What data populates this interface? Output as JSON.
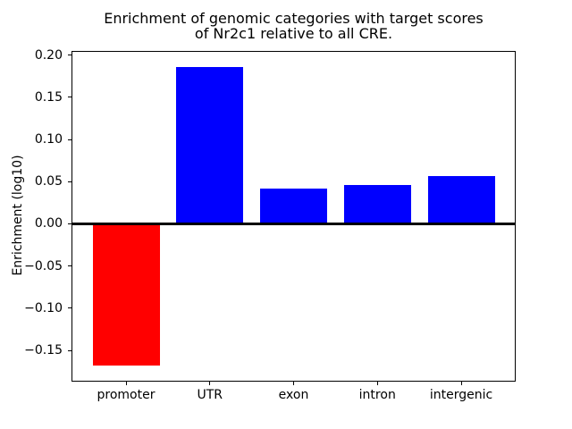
{
  "figure": {
    "title_lines": [
      "Enrichment of genomic categories with target scores",
      "of Nr2c1 relative to all CRE."
    ],
    "background_color": "#ffffff",
    "text_color": "#000000"
  },
  "chart_data": {
    "type": "bar",
    "title": "Enrichment of genomic categories with target scores of Nr2c1 relative to all CRE.",
    "xlabel": "",
    "ylabel": "Enrichment (log10)",
    "categories": [
      "promoter",
      "UTR",
      "exon",
      "intron",
      "intergenic"
    ],
    "values": [
      -0.168,
      0.186,
      0.042,
      0.046,
      0.057
    ],
    "bar_colors": [
      "#ff0000",
      "#0000ff",
      "#0000ff",
      "#0000ff",
      "#0000ff"
    ],
    "ylim": [
      -0.186,
      0.204
    ],
    "yticks": [
      {
        "value": -0.15,
        "label": "−0.15"
      },
      {
        "value": -0.1,
        "label": "−0.10"
      },
      {
        "value": -0.05,
        "label": "−0.05"
      },
      {
        "value": 0.0,
        "label": "0.00"
      },
      {
        "value": 0.05,
        "label": "0.05"
      },
      {
        "value": 0.1,
        "label": "0.10"
      },
      {
        "value": 0.15,
        "label": "0.15"
      },
      {
        "value": 0.2,
        "label": "0.20"
      }
    ],
    "zero_line": true,
    "grid": false,
    "legend_position": "none"
  }
}
